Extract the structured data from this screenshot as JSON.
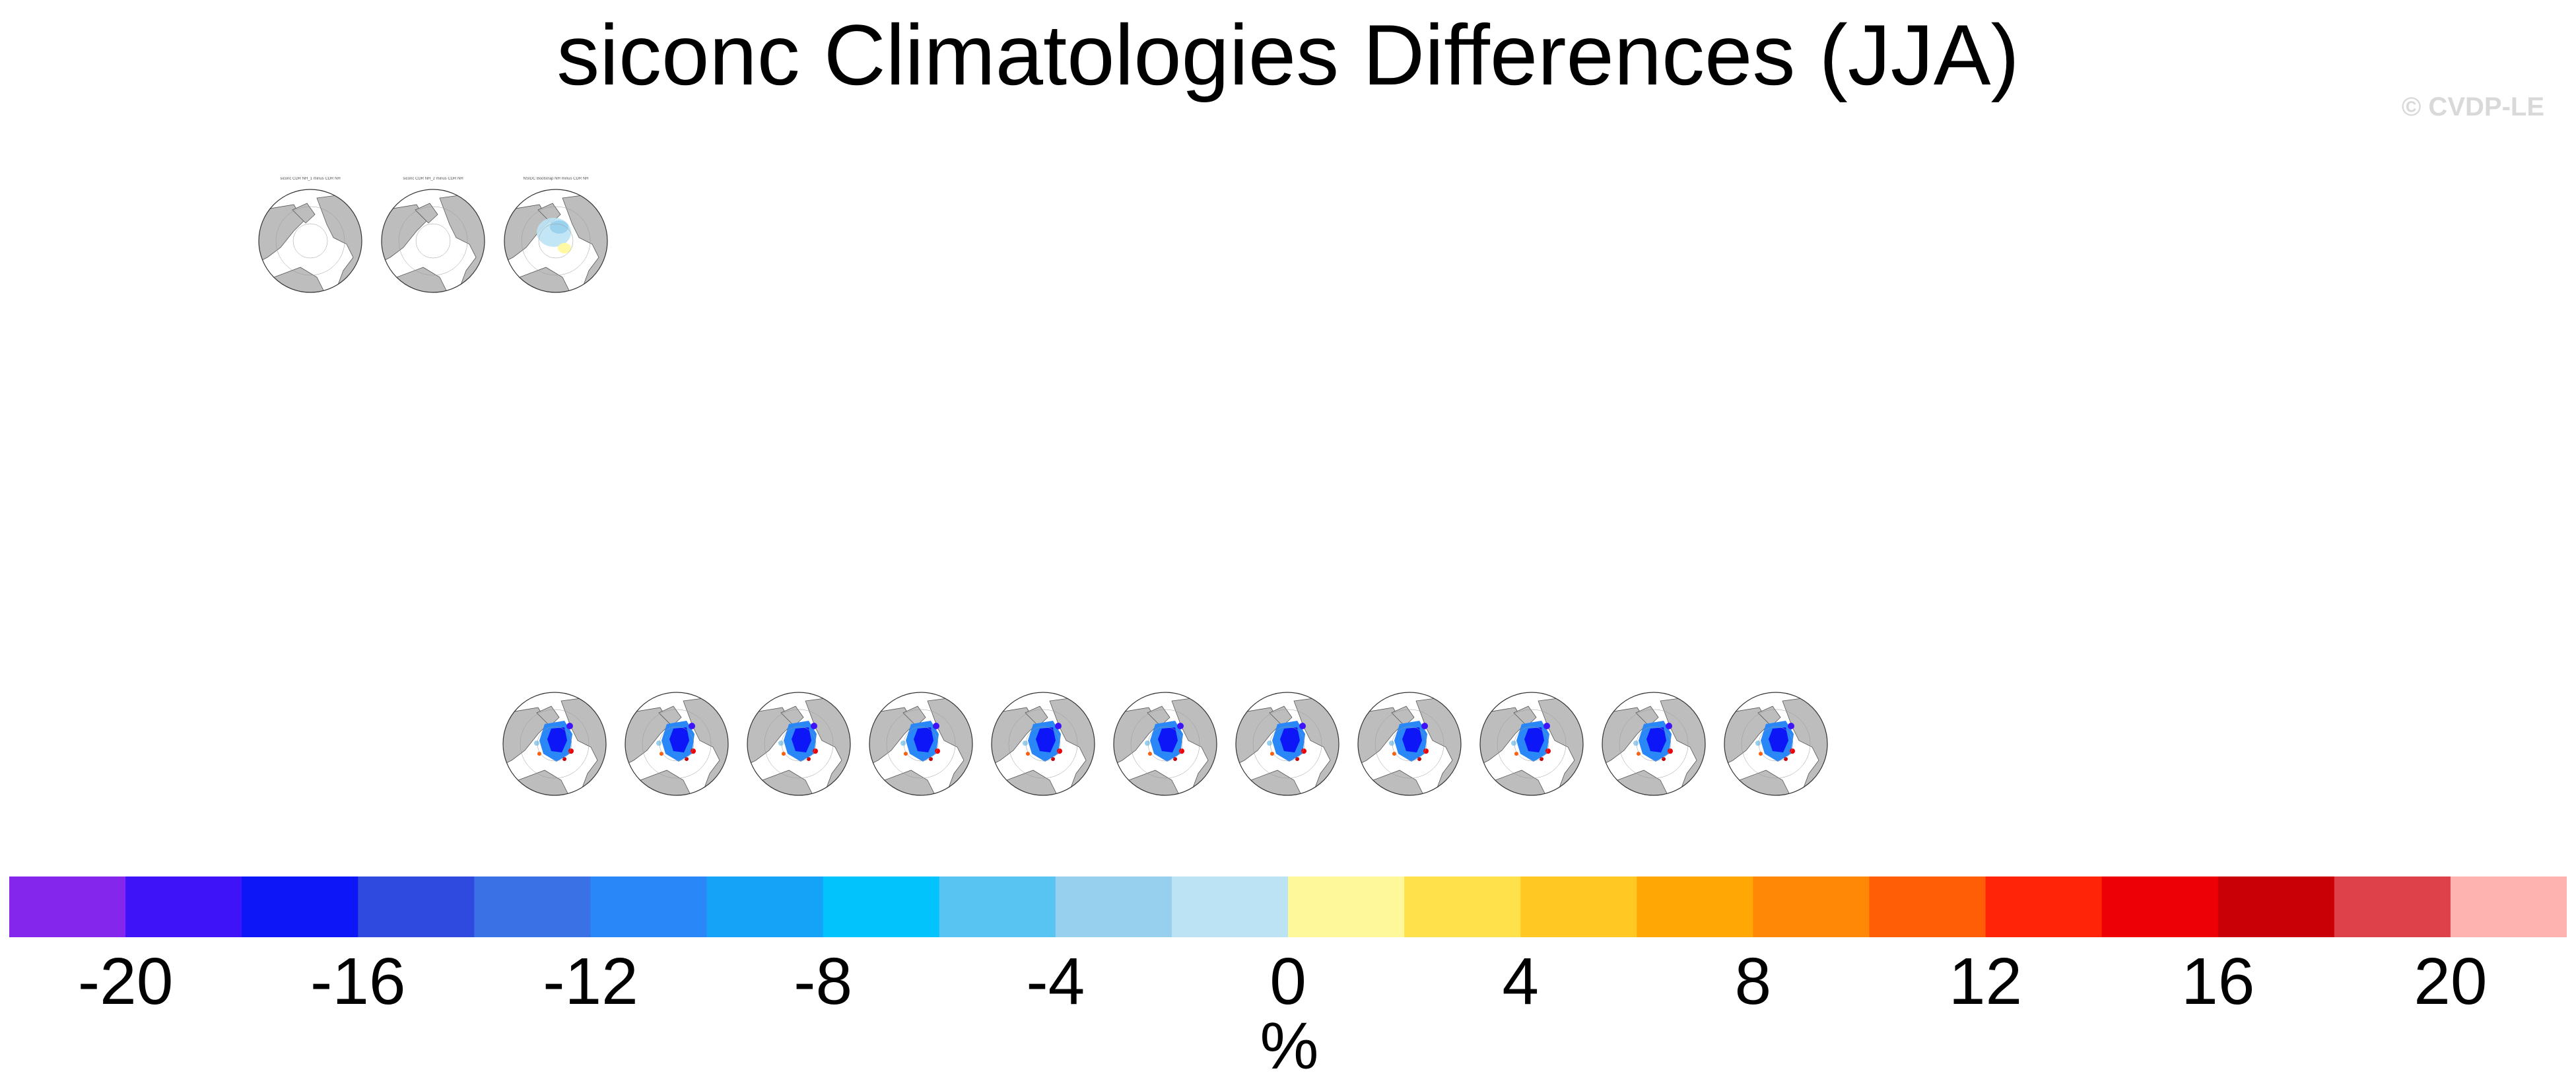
{
  "title": "siconc Climatologies Differences (JJA)",
  "watermark": "© CVDP-LE",
  "chart_data": {
    "type": "heatmap",
    "title": "siconc Climatologies Differences (JJA)",
    "projection": "north polar stereographic",
    "land_color": "#bdbdbd",
    "panels": [
      {
        "row": 1,
        "index": 1,
        "title": "siconc CDR NH_1 minus CDR NH",
        "field": "near-zero"
      },
      {
        "row": 1,
        "index": 2,
        "title": "siconc CDR NH_2 minus CDR NH",
        "field": "near-zero"
      },
      {
        "row": 1,
        "index": 3,
        "title": "NSIDC Bootstrap NH minus CDR NH",
        "field": "small"
      },
      {
        "row": 2,
        "index": 1,
        "field": "large"
      },
      {
        "row": 2,
        "index": 2,
        "field": "large"
      },
      {
        "row": 2,
        "index": 3,
        "field": "large"
      },
      {
        "row": 2,
        "index": 4,
        "field": "large"
      },
      {
        "row": 2,
        "index": 5,
        "field": "large"
      },
      {
        "row": 2,
        "index": 6,
        "field": "large"
      },
      {
        "row": 2,
        "index": 7,
        "field": "large"
      },
      {
        "row": 2,
        "index": 8,
        "field": "large"
      },
      {
        "row": 2,
        "index": 9,
        "field": "large"
      },
      {
        "row": 2,
        "index": 10,
        "field": "large"
      },
      {
        "row": 2,
        "index": 11,
        "field": "large"
      }
    ],
    "colorbar": {
      "levels": [
        -22,
        -20,
        -18,
        -16,
        -14,
        -12,
        -10,
        -8,
        -6,
        -4,
        -2,
        0,
        2,
        4,
        6,
        8,
        10,
        12,
        14,
        16,
        18,
        20,
        22
      ],
      "colors": [
        "#8426ec",
        "#3f13f8",
        "#0c16f6",
        "#2f4bdf",
        "#3a71e5",
        "#2a87f7",
        "#15a3f7",
        "#03c3fc",
        "#58c4f1",
        "#97d0ee",
        "#bbe3f4",
        "#fff89a",
        "#ffe14b",
        "#ffc822",
        "#ffa705",
        "#ff8806",
        "#ff5d06",
        "#ff2407",
        "#ee0106",
        "#c90006",
        "#de4149",
        "#feb3b1"
      ],
      "ticks": [
        "-20",
        "-16",
        "-12",
        "-8",
        "-4",
        "0",
        "4",
        "8",
        "12",
        "16",
        "20"
      ],
      "unit": "%"
    }
  }
}
